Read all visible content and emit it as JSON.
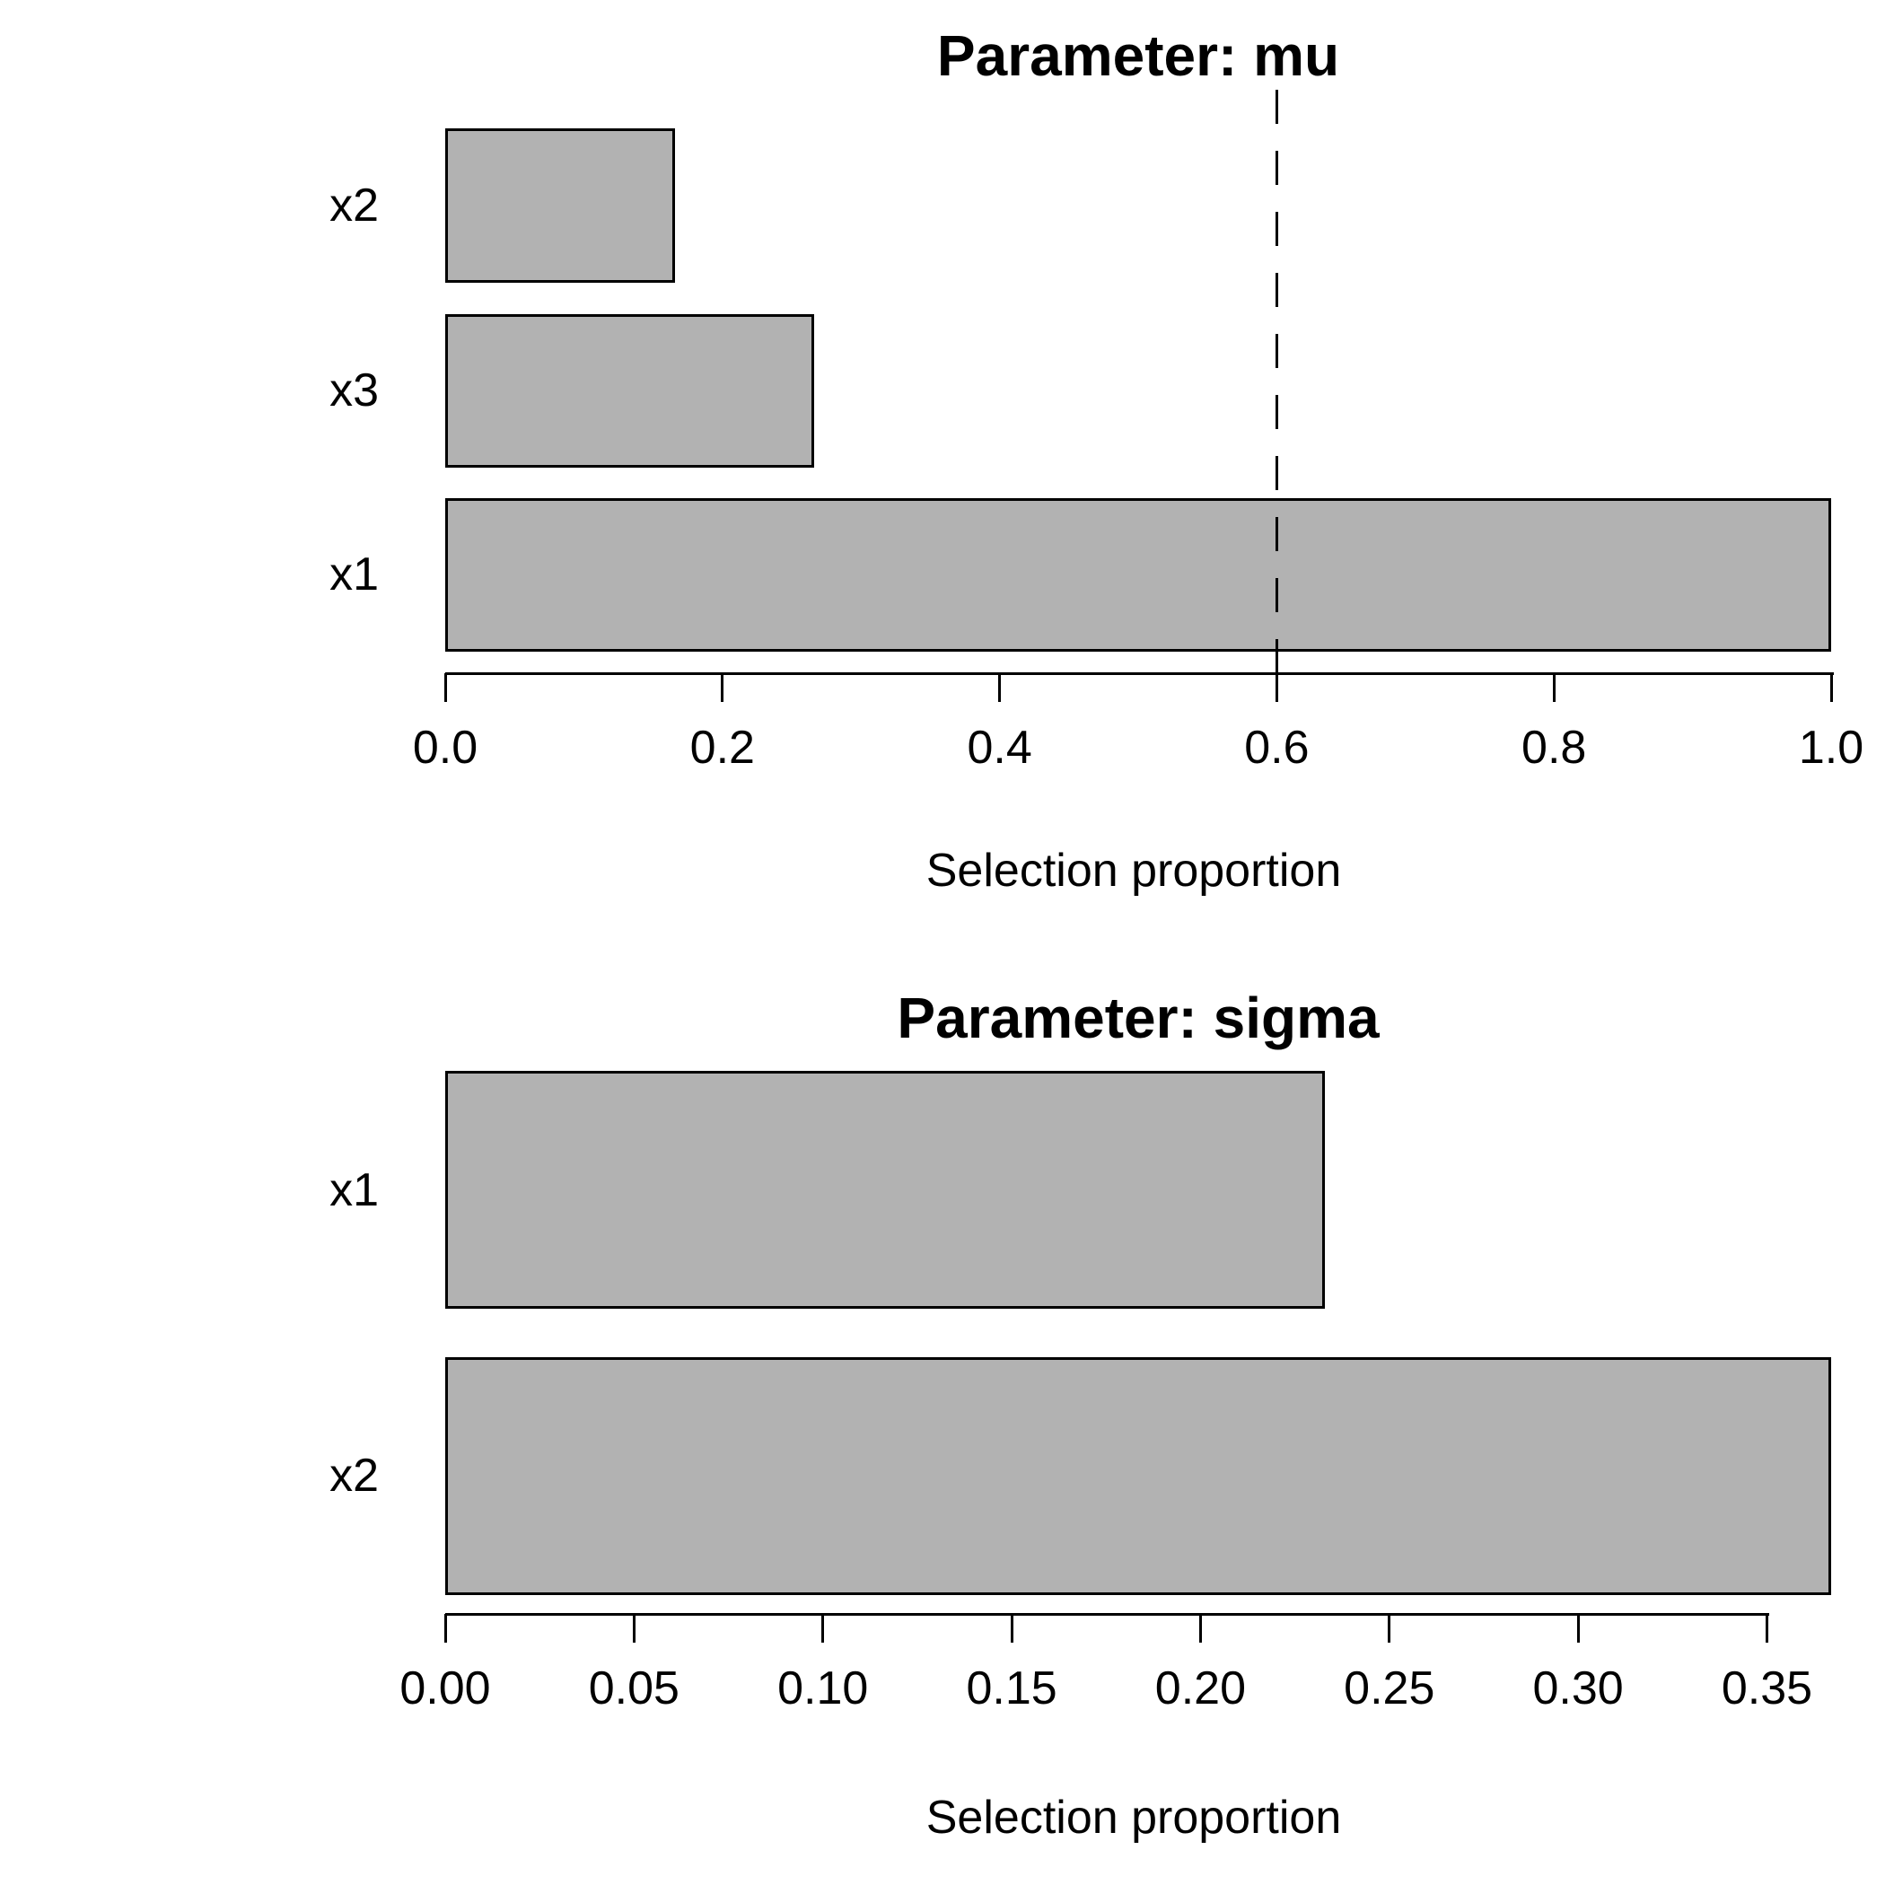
{
  "figure": {
    "background": "#ffffff",
    "text_color": "#000000",
    "axis_color": "#000000"
  },
  "chart_data": [
    {
      "type": "bar",
      "orientation": "horizontal",
      "title": "Parameter: mu",
      "xlabel": "Selection proportion",
      "categories": [
        "x2",
        "x3",
        "x1"
      ],
      "values": [
        0.166,
        0.266,
        1.0
      ],
      "xlim": [
        0,
        1.0
      ],
      "xticks": [
        {
          "v": 0.0,
          "label": "0.0"
        },
        {
          "v": 0.2,
          "label": "0.2"
        },
        {
          "v": 0.4,
          "label": "0.4"
        },
        {
          "v": 0.6,
          "label": "0.6"
        },
        {
          "v": 0.8,
          "label": "0.8"
        },
        {
          "v": 1.0,
          "label": "1.0"
        }
      ],
      "threshold_line": {
        "value": 0.6,
        "style": "dashed",
        "color": "#000000"
      },
      "bar_fill": "#b2b2b2",
      "bar_border": "#000000",
      "grid": false,
      "legend": null
    },
    {
      "type": "bar",
      "orientation": "horizontal",
      "title": "Parameter: sigma",
      "xlabel": "Selection proportion",
      "categories": [
        "x1",
        "x2"
      ],
      "values": [
        0.233,
        0.367
      ],
      "xlim": [
        0,
        0.367
      ],
      "xticks": [
        {
          "v": 0.0,
          "label": "0.00"
        },
        {
          "v": 0.05,
          "label": "0.05"
        },
        {
          "v": 0.1,
          "label": "0.10"
        },
        {
          "v": 0.15,
          "label": "0.15"
        },
        {
          "v": 0.2,
          "label": "0.20"
        },
        {
          "v": 0.25,
          "label": "0.25"
        },
        {
          "v": 0.3,
          "label": "0.30"
        },
        {
          "v": 0.35,
          "label": "0.35"
        }
      ],
      "threshold_line": null,
      "bar_fill": "#b2b2b2",
      "bar_border": "#000000",
      "grid": false,
      "legend": null
    }
  ]
}
